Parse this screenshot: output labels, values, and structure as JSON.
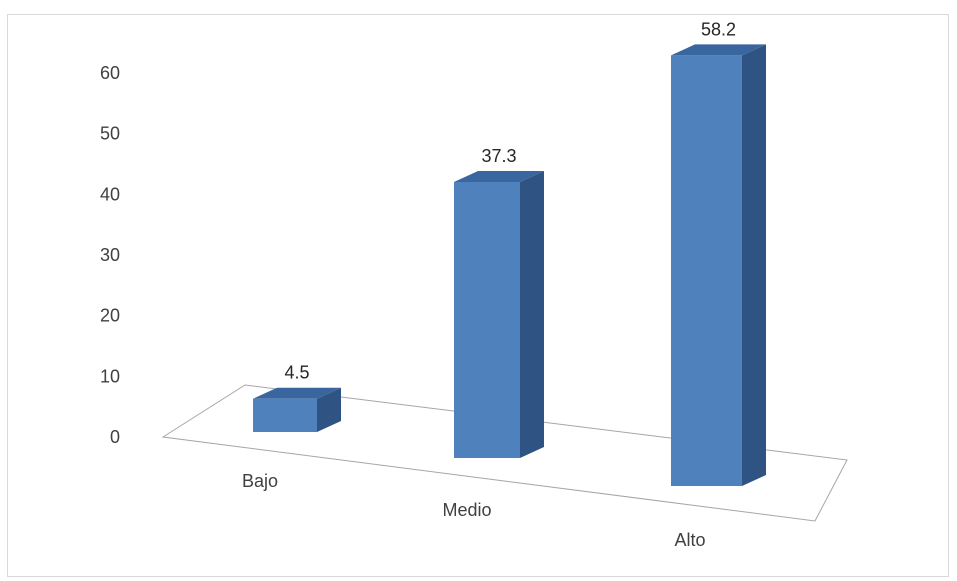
{
  "chart_data": {
    "type": "bar",
    "style": "3d-column",
    "categories": [
      "Bajo",
      "Medio",
      "Alto"
    ],
    "values": [
      4.5,
      37.3,
      58.2
    ],
    "data_labels": [
      "4.5",
      "37.3",
      "58.2"
    ],
    "yticks": [
      "0",
      "10",
      "20",
      "30",
      "40",
      "50",
      "60"
    ],
    "ylim": [
      0,
      60
    ],
    "title": "",
    "xlabel": "",
    "ylabel": "",
    "grid": false,
    "legend": "none",
    "colors": {
      "front": "#4f81bd",
      "side": "#2f5382",
      "top": "#3a66a0",
      "floor_stroke": "#a6a6a6"
    }
  }
}
